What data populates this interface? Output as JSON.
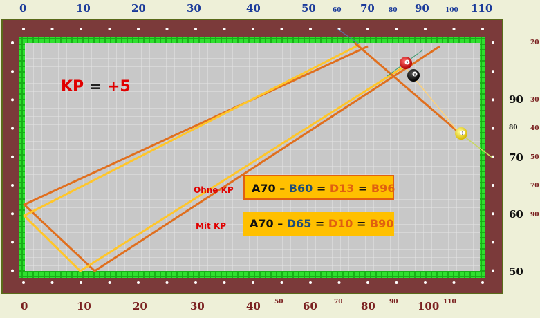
{
  "top_scale": [
    {
      "t": "0"
    },
    {
      "t": "10"
    },
    {
      "t": "20"
    },
    {
      "t": "30"
    },
    {
      "t": "40"
    },
    {
      "t": "50"
    },
    {
      "t": "60",
      "small": true
    },
    {
      "t": "70"
    },
    {
      "t": "80",
      "small": true
    },
    {
      "t": "90"
    },
    {
      "t": "100",
      "small": true
    },
    {
      "t": "110"
    }
  ],
  "bottom_scale": [
    {
      "t": "0"
    },
    {
      "t": "10"
    },
    {
      "t": "20"
    },
    {
      "t": "30"
    },
    {
      "t": "40"
    },
    {
      "t": "50",
      "small": true
    },
    {
      "t": "60"
    },
    {
      "t": "70",
      "small": true
    },
    {
      "t": "80"
    },
    {
      "t": "90",
      "small": true
    },
    {
      "t": "100"
    },
    {
      "t": "110",
      "small": true
    }
  ],
  "right_scale_outer": [
    {
      "t": "90"
    },
    {
      "t": "80",
      "small": true
    },
    {
      "t": "70"
    },
    {
      "t": "60"
    },
    {
      "t": "50"
    }
  ],
  "right_scale_inner": [
    {
      "t": "20"
    },
    {
      "t": "30"
    },
    {
      "t": "40"
    },
    {
      "t": "50"
    },
    {
      "t": "70"
    },
    {
      "t": "90"
    }
  ],
  "kp": {
    "label": "KP",
    "eq": " = ",
    "value": "+5"
  },
  "ohne_kp": {
    "label": "Ohne KP",
    "formula": {
      "a": "A70",
      "dash": " – ",
      "b": "B60",
      "eq1": " = ",
      "d": "D13",
      "eq2": " = ",
      "r": "B96"
    }
  },
  "mit_kp": {
    "label": "Mit KP",
    "formula": {
      "a": "A70",
      "dash": " – ",
      "b": "D65",
      "eq1": " = ",
      "d": "D10",
      "eq2": " = ",
      "r": "B90"
    }
  },
  "balls": [
    {
      "name": "red-ball",
      "num": "2"
    },
    {
      "name": "black-ball",
      "num": "8"
    },
    {
      "name": "yellow-ball",
      "num": "1"
    }
  ],
  "colors": {
    "rail": "#7b3a3a",
    "cushion": "#22d022",
    "cloth": "#c8c8c8",
    "orange": "#e06f1e",
    "yellow": "#ffc62a",
    "label_bg": "#ffc000"
  }
}
